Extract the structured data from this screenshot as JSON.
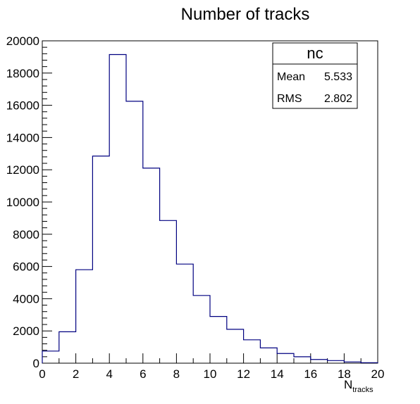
{
  "chart_data": {
    "type": "bar",
    "title": "Number of tracks",
    "xlabel": "N",
    "xlabel_subscript": "tracks",
    "ylabel": "",
    "xlim": [
      0,
      20
    ],
    "ylim": [
      0,
      20000
    ],
    "bin_edges": [
      0,
      1,
      2,
      3,
      4,
      5,
      6,
      7,
      8,
      9,
      10,
      11,
      12,
      13,
      14,
      15,
      16,
      17,
      18,
      19,
      20
    ],
    "values": [
      750,
      1950,
      5800,
      12850,
      19150,
      16250,
      12100,
      8850,
      6150,
      4200,
      2900,
      2100,
      1450,
      950,
      600,
      400,
      230,
      160,
      80,
      30
    ],
    "line_color": "#000080",
    "grid": false,
    "x_ticks": [
      0,
      2,
      4,
      6,
      8,
      10,
      12,
      14,
      16,
      18,
      20
    ],
    "y_ticks": [
      0,
      2000,
      4000,
      6000,
      8000,
      10000,
      12000,
      14000,
      16000,
      18000,
      20000
    ],
    "stats_box": {
      "name": "nc",
      "rows": [
        {
          "label": "Mean",
          "value": "5.533"
        },
        {
          "label": "RMS",
          "value": "2.802"
        }
      ]
    }
  }
}
